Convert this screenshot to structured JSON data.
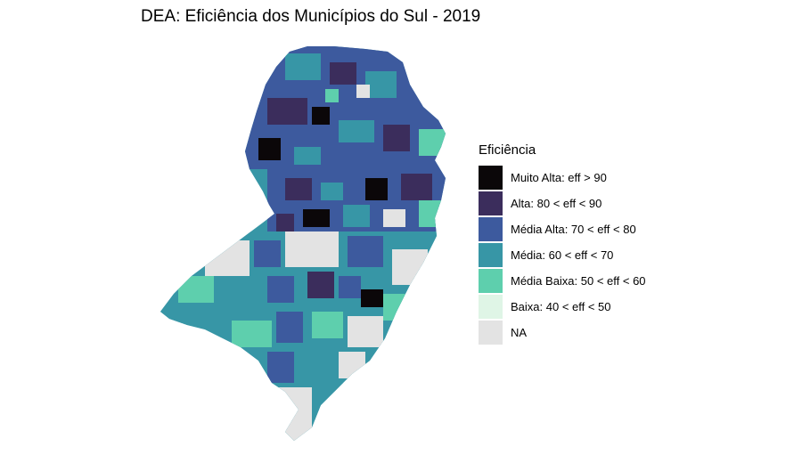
{
  "title": "DEA: Eficiência dos Municípios do Sul - 2019",
  "legend": {
    "title": "Eficiência",
    "items": [
      {
        "label": "Muito Alta: eff > 90",
        "color": "#0b0709"
      },
      {
        "label": "Alta: 80 < eff < 90",
        "color": "#3b2d5c"
      },
      {
        "label": "Média Alta: 70 < eff < 80",
        "color": "#3d5a9e"
      },
      {
        "label": "Média: 60 < eff < 70",
        "color": "#3796a6"
      },
      {
        "label": "Média Baixa: 50 < eff < 60",
        "color": "#5ecfad"
      },
      {
        "label": "Baixa: 40 < eff < 50",
        "color": "#dff5e6"
      },
      {
        "label": "NA",
        "color": "#e3e3e3"
      }
    ]
  }
}
